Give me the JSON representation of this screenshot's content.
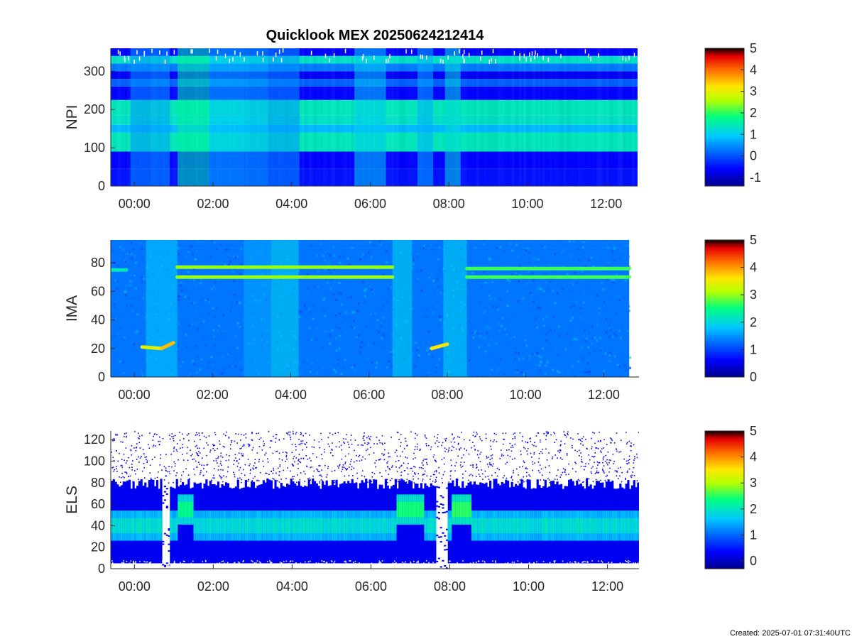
{
  "title": "Quicklook MEX 20250624212414",
  "footer": "Created: 2025-07-01 07:31:40UTC",
  "chart_data": [
    {
      "type": "heatmap",
      "ylabel": "NPI",
      "xlabel": "",
      "xlim": [
        -0.6,
        12.8
      ],
      "ylim": [
        0,
        360
      ],
      "data_end": 12.8,
      "xticks": [
        0,
        2,
        4,
        6,
        8,
        10,
        12
      ],
      "xtick_labels": [
        "00:00",
        "02:00",
        "04:00",
        "06:00",
        "08:00",
        "10:00",
        "12:00"
      ],
      "yticks": [
        0,
        100,
        200,
        300
      ],
      "ytick_labels": [
        "0",
        "100",
        "200",
        "300"
      ],
      "colorbar": {
        "range": [
          -1.4,
          5
        ],
        "ticks": [
          -1,
          0,
          1,
          2,
          3,
          4,
          5
        ],
        "tick_labels": [
          "-1",
          "0",
          "1",
          "2",
          "3",
          "4",
          "5"
        ]
      },
      "bands": [
        {
          "y": [
            0,
            45
          ],
          "level": -0.5
        },
        {
          "y": [
            45,
            90
          ],
          "level": -0.6
        },
        {
          "y": [
            90,
            140
          ],
          "level": 1.4
        },
        {
          "y": [
            140,
            160
          ],
          "level": 0.8
        },
        {
          "y": [
            160,
            185
          ],
          "level": 1.3
        },
        {
          "y": [
            185,
            225
          ],
          "level": 1.4
        },
        {
          "y": [
            225,
            260
          ],
          "level": -0.6
        },
        {
          "y": [
            260,
            280
          ],
          "level": 0.1
        },
        {
          "y": [
            280,
            300
          ],
          "level": -0.7
        },
        {
          "y": [
            300,
            320
          ],
          "level": 0.3
        },
        {
          "y": [
            320,
            340
          ],
          "level": 1.3
        },
        {
          "y": [
            340,
            360
          ],
          "level": -0.6
        }
      ],
      "events": [
        {
          "t": [
            -0.1,
            0.4
          ],
          "level": 0.5
        },
        {
          "t": [
            0.4,
            0.9
          ],
          "level": 0.6
        },
        {
          "t": [
            1.1,
            1.9
          ],
          "level": 1.6
        },
        {
          "t": [
            1.9,
            2.8
          ],
          "level": 0.9
        },
        {
          "t": [
            2.8,
            3.4
          ],
          "level": 0.8
        },
        {
          "t": [
            3.4,
            4.2
          ],
          "level": 0.5
        },
        {
          "t": [
            5.6,
            6.4
          ],
          "level": 1.0
        },
        {
          "t": [
            7.2,
            7.6
          ],
          "level": 0.7
        },
        {
          "t": [
            7.9,
            8.3
          ],
          "level": 1.2
        }
      ]
    },
    {
      "type": "heatmap",
      "ylabel": "IMA",
      "xlabel": "",
      "xlim": [
        -0.6,
        12.9
      ],
      "ylim": [
        0,
        96
      ],
      "data_end": 12.65,
      "xticks": [
        0,
        2,
        4,
        6,
        8,
        10,
        12
      ],
      "xtick_labels": [
        "00:00",
        "02:00",
        "04:00",
        "06:00",
        "08:00",
        "10:00",
        "12:00"
      ],
      "yticks": [
        0,
        20,
        40,
        60,
        80
      ],
      "ytick_labels": [
        "0",
        "20",
        "40",
        "60",
        "80"
      ],
      "colorbar": {
        "range": [
          0,
          5
        ],
        "ticks": [
          0,
          1,
          2,
          3,
          4,
          5
        ],
        "tick_labels": [
          "0",
          "1",
          "2",
          "3",
          "4",
          "5"
        ]
      },
      "background_level": 1.3,
      "events": [
        {
          "t": [
            0.3,
            1.1
          ],
          "level": 1.8
        },
        {
          "t": [
            2.8,
            3.5
          ],
          "level": 1.6
        },
        {
          "t": [
            3.5,
            4.2
          ],
          "level": 1.9
        },
        {
          "t": [
            6.6,
            7.1
          ],
          "level": 1.9
        },
        {
          "t": [
            7.9,
            8.5
          ],
          "level": 1.9
        }
      ],
      "lines": [
        {
          "t": [
            1.1,
            6.6
          ],
          "y0": 77,
          "y1": 77,
          "level": 3.0
        },
        {
          "t": [
            1.1,
            6.6
          ],
          "y0": 70,
          "y1": 70,
          "level": 3.0
        },
        {
          "t": [
            8.5,
            12.65
          ],
          "y0": 76,
          "y1": 76,
          "level": 2.7
        },
        {
          "t": [
            8.5,
            12.65
          ],
          "y0": 70,
          "y1": 70,
          "level": 2.7
        },
        {
          "t": [
            0.2,
            0.7
          ],
          "y0": 21,
          "y1": 20,
          "level": 3.4
        },
        {
          "t": [
            0.7,
            1.0
          ],
          "y0": 20,
          "y1": 24,
          "level": 3.8
        },
        {
          "t": [
            7.6,
            8.0
          ],
          "y0": 20,
          "y1": 23,
          "level": 3.6
        },
        {
          "t": [
            -0.6,
            -0.2
          ],
          "y0": 75,
          "y1": 75,
          "level": 2.2
        }
      ]
    },
    {
      "type": "heatmap",
      "ylabel": "ELS",
      "xlabel": "",
      "xlim": [
        -0.6,
        12.8
      ],
      "ylim": [
        0,
        128
      ],
      "data_end": 12.8,
      "xticks": [
        0,
        2,
        4,
        6,
        8,
        10,
        12
      ],
      "xtick_labels": [
        "00:00",
        "02:00",
        "04:00",
        "06:00",
        "08:00",
        "10:00",
        "12:00"
      ],
      "yticks": [
        0,
        20,
        40,
        60,
        80,
        100,
        120
      ],
      "ytick_labels": [
        "0",
        "20",
        "40",
        "60",
        "80",
        "100",
        "120"
      ],
      "colorbar": {
        "range": [
          -0.3,
          5
        ],
        "ticks": [
          0,
          1,
          2,
          3,
          4,
          5
        ],
        "tick_labels": [
          "0",
          "1",
          "2",
          "3",
          "4",
          "5"
        ]
      },
      "band_center": 40,
      "band_peak_level": 2.0,
      "upper_edge": 80,
      "events": [
        {
          "t": [
            0.7,
            0.9
          ],
          "level": -1
        },
        {
          "t": [
            1.1,
            1.5
          ],
          "level": 2.3
        },
        {
          "t": [
            6.6,
            7.3
          ],
          "level": 2.4
        },
        {
          "t": [
            7.6,
            7.9
          ],
          "level": -1
        },
        {
          "t": [
            8.0,
            8.5
          ],
          "level": 2.5
        }
      ]
    }
  ],
  "colors": {
    "axis": "#262626",
    "background": "#ffffff",
    "colormap": [
      "#00008f",
      "#0000ff",
      "#00bfff",
      "#00ff80",
      "#ffff00",
      "#ff8000",
      "#ff0000",
      "#8f0000",
      "#000000"
    ]
  }
}
